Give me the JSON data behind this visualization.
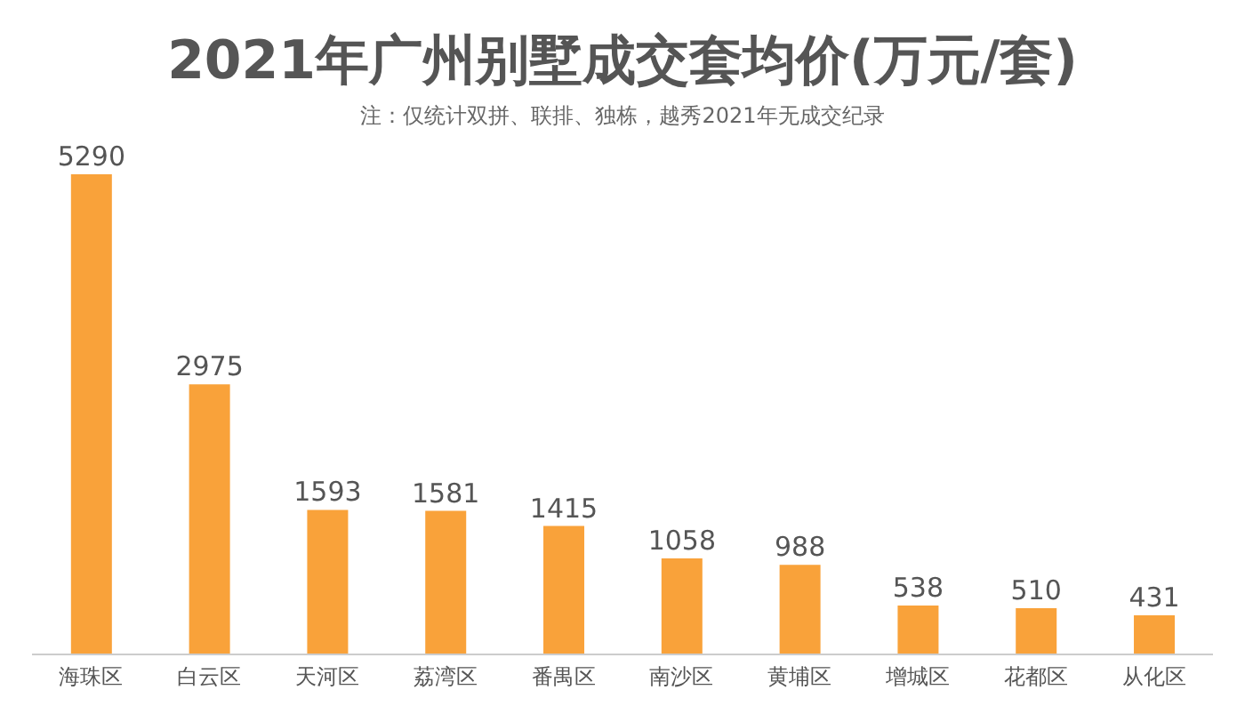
{
  "chart_data": {
    "type": "bar",
    "title": "2021年广州别墅成交套均价(万元/套)",
    "subtitle": "注：仅统计双拼、联排、独栋，越秀2021年无成交纪录",
    "categories": [
      "海珠区",
      "白云区",
      "天河区",
      "荔湾区",
      "番禺区",
      "南沙区",
      "黄埔区",
      "增城区",
      "花都区",
      "从化区"
    ],
    "values": [
      5290,
      2975,
      1593,
      1581,
      1415,
      1058,
      988,
      538,
      510,
      431
    ],
    "color": "#f9a23a",
    "data_labels": true
  }
}
